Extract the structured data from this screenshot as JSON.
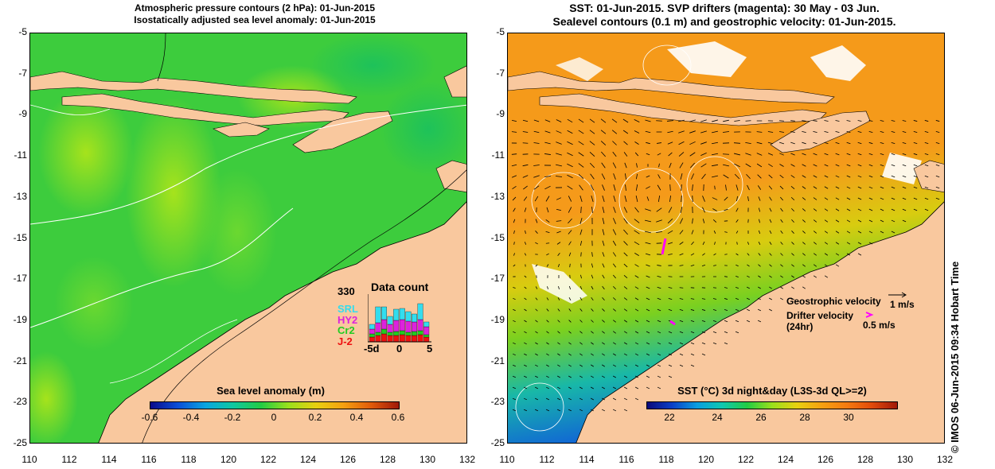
{
  "left_panel": {
    "title_line1": "Atmospheric pressure contours (2 hPa): 01-Jun-2015",
    "title_line2": "Isostatically adjusted sea level anomaly: 01-Jun-2015",
    "colorbar_title": "Sea level anomaly (m)",
    "colorbar_ticks": [
      "-0.6",
      "-0.4",
      "-0.2",
      "0",
      "0.2",
      "0.4",
      "0.6"
    ],
    "inset": {
      "top_value": "330",
      "title": "Data count",
      "legend": [
        "SRL",
        "HY2",
        "Cr2",
        "J-2"
      ],
      "legend_colors": [
        "#33ddee",
        "#dd22dd",
        "#22cc22",
        "#ee1111"
      ],
      "x_ticks": [
        "-5d",
        "0",
        "5"
      ]
    }
  },
  "right_panel": {
    "title_line1": "SST: 01-Jun-2015. SVP drifters (magenta): 30 May - 03 Jun.",
    "title_line2": "Sealevel contours (0.1 m) and geostrophic velocity: 01-Jun-2015.",
    "colorbar_title": "SST (°C) 3d night&day (L3S-3d QL>=2)",
    "colorbar_ticks": [
      "22",
      "24",
      "26",
      "28",
      "30"
    ],
    "geostrophic_label": "Geostrophic velocity",
    "geostrophic_scale": "1 m/s",
    "drifter_label_1": "Drifter velocity",
    "drifter_label_2": "(24hr)",
    "drifter_scale": "0.5 m/s",
    "side_caption": "© IMOS 06-Jun-2015 09:34 Hobart Time"
  },
  "axes": {
    "lat_ticks": [
      "-5",
      "-7",
      "-9",
      "-11",
      "-13",
      "-15",
      "-17",
      "-19",
      "-21",
      "-23",
      "-25"
    ],
    "lon_ticks": [
      "110",
      "112",
      "114",
      "116",
      "118",
      "120",
      "122",
      "124",
      "126",
      "128",
      "130",
      "132"
    ]
  },
  "colors": {
    "land": "#f9c89e",
    "ocean_green": "#3dcc3d",
    "sst_orange": "#f59a1a"
  }
}
